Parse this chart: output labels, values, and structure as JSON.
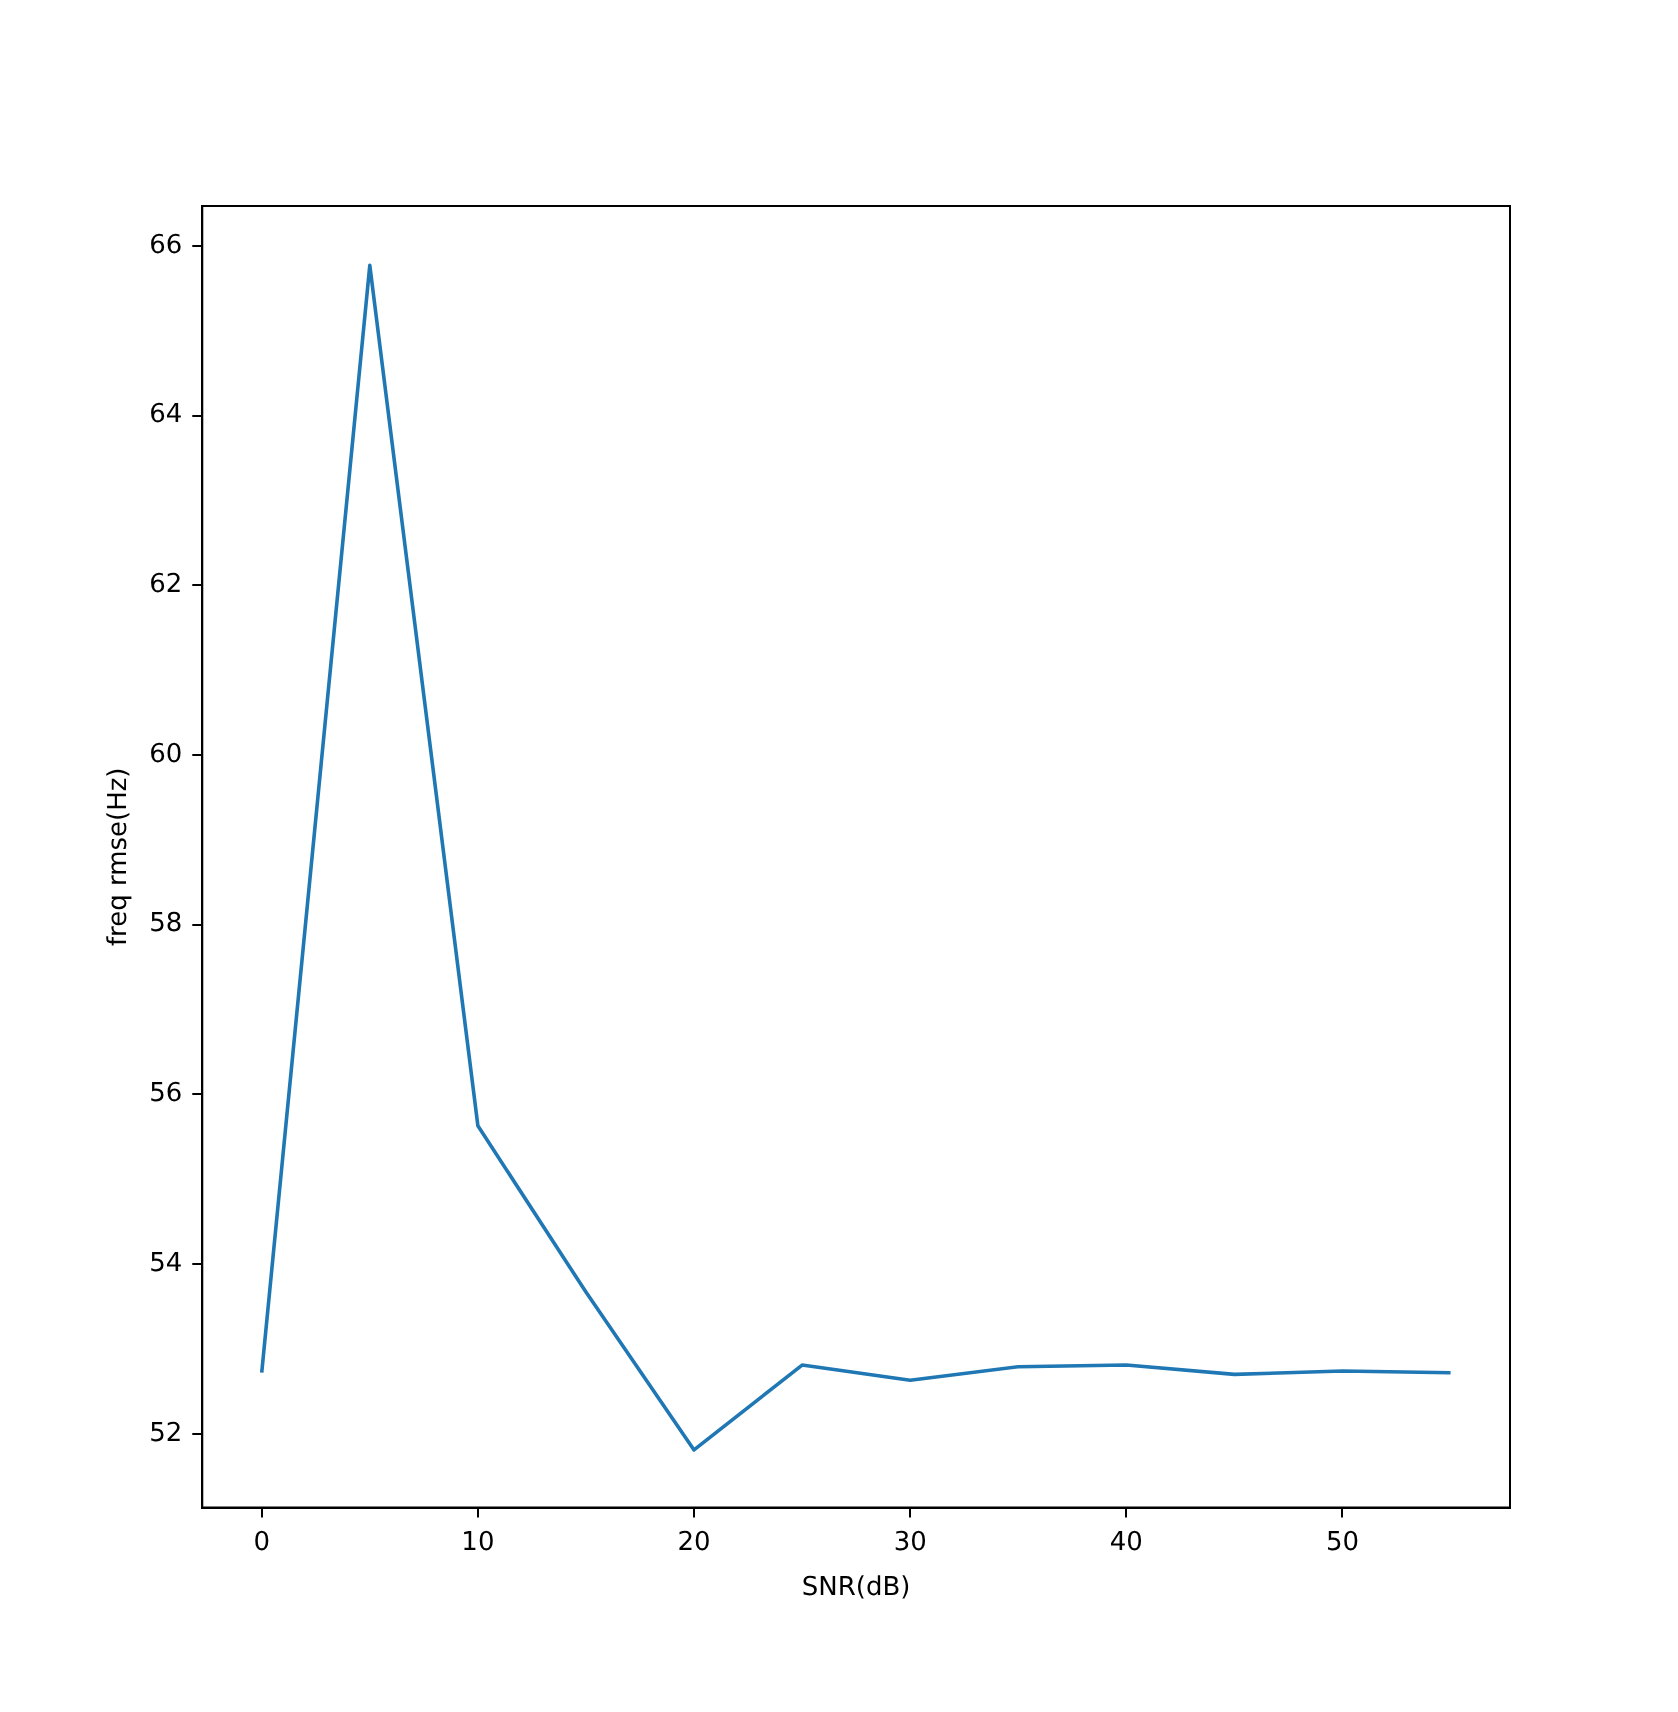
{
  "chart_data": {
    "type": "line",
    "xlabel": "SNR(dB)",
    "ylabel": "freq rmse(Hz)",
    "x": [
      0,
      5,
      10,
      15,
      20,
      25,
      30,
      35,
      40,
      45,
      50,
      55
    ],
    "series": [
      {
        "color": "#1f77b4",
        "values": [
          52.72,
          65.77,
          55.63,
          53.67,
          51.81,
          52.81,
          52.63,
          52.79,
          52.81,
          52.7,
          52.74,
          52.72
        ]
      }
    ],
    "xlim": [
      -2.75,
      57.75
    ],
    "xticks": [
      0,
      10,
      20,
      30,
      40,
      50
    ],
    "ylim": [
      51.13,
      66.47
    ],
    "yticks": [
      52,
      54,
      56,
      58,
      60,
      62,
      64,
      66
    ],
    "grid": false,
    "legend": false,
    "marker": "none",
    "line_style": "solid"
  }
}
